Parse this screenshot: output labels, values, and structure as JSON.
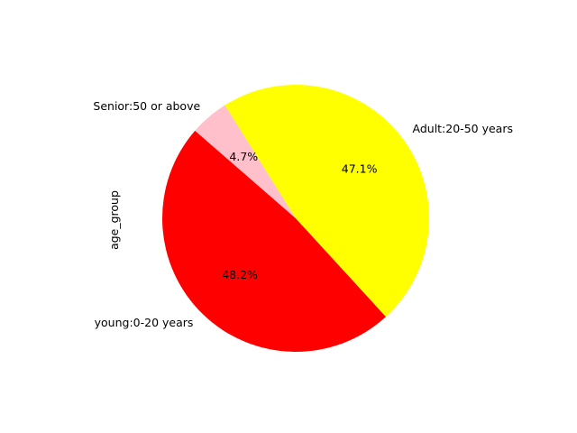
{
  "chart_data": {
    "type": "pie",
    "title": "",
    "ylabel": "age_group",
    "start_angle_deg": 139,
    "direction": "counterclockwise",
    "slices": [
      {
        "label": "young:0-20 years",
        "value": 48.2,
        "pct_label": "48.2%",
        "color": "#ff0000"
      },
      {
        "label": "Adult:20-50 years",
        "value": 47.1,
        "pct_label": "47.1%",
        "color": "#ffff00"
      },
      {
        "label": "Senior:50 or above",
        "value": 4.7,
        "pct_label": "4.7%",
        "color": "#ffc0cb"
      }
    ]
  }
}
